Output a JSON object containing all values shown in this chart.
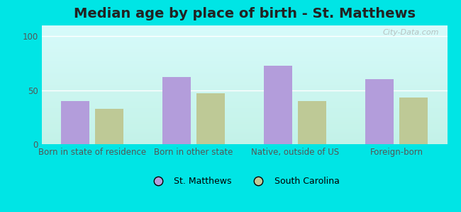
{
  "title": "Median age by place of birth - St. Matthews",
  "categories": [
    "Born in state of residence",
    "Born in other state",
    "Native, outside of US",
    "Foreign-born"
  ],
  "st_matthews": [
    40,
    62,
    73,
    60
  ],
  "south_carolina": [
    33,
    47,
    40,
    43
  ],
  "bar_color_stmatthews": "#b39ddb",
  "bar_color_sc": "#bec996",
  "ylim": [
    0,
    110
  ],
  "yticks": [
    0,
    50,
    100
  ],
  "legend_labels": [
    "St. Matthews",
    "South Carolina"
  ],
  "background_color": "#00e5e5",
  "watermark": "City-Data.com",
  "title_fontsize": 14,
  "tick_fontsize": 8.5
}
